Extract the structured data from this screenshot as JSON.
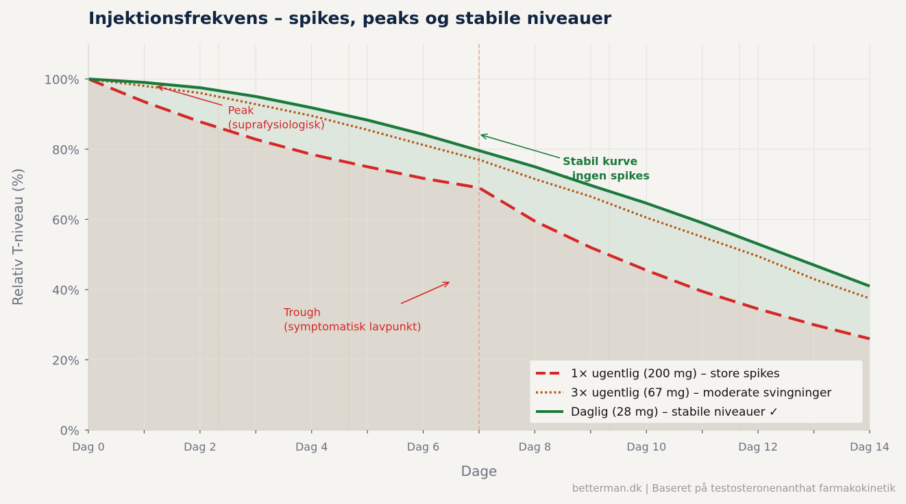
{
  "chart_data": {
    "type": "line",
    "title": "Injektionsfrekvens – spikes, peaks og stabile niveauer",
    "xlabel": "Dage",
    "ylabel": "Relativ T-niveau (%)",
    "xlim": [
      0,
      14
    ],
    "ylim": [
      0,
      110
    ],
    "x_ticks": [
      {
        "value": 0,
        "label": "Dag 0"
      },
      {
        "value": 2,
        "label": "Dag 2"
      },
      {
        "value": 4,
        "label": "Dag 4"
      },
      {
        "value": 6,
        "label": "Dag 6"
      },
      {
        "value": 8,
        "label": "Dag 8"
      },
      {
        "value": 10,
        "label": "Dag 10"
      },
      {
        "value": 12,
        "label": "Dag 12"
      },
      {
        "value": 14,
        "label": "Dag 14"
      }
    ],
    "y_ticks": [
      {
        "value": 0,
        "label": "0%"
      },
      {
        "value": 20,
        "label": "20%"
      },
      {
        "value": 40,
        "label": "40%"
      },
      {
        "value": 60,
        "label": "60%"
      },
      {
        "value": 80,
        "label": "80%"
      },
      {
        "value": 100,
        "label": "100%"
      }
    ],
    "grid": true,
    "legend_position": "bottom-right",
    "series": [
      {
        "name": "1× ugentlig (200 mg) – store spikes",
        "color": "#d62728",
        "style": "dashed",
        "x": [
          0,
          1,
          2,
          3,
          4,
          5,
          6,
          7,
          8,
          9,
          10,
          11,
          12,
          13,
          14
        ],
        "values": [
          100,
          93.5,
          87.8,
          82.8,
          78.5,
          75,
          71.7,
          69,
          59.5,
          52,
          45.5,
          39.5,
          34.5,
          30,
          26
        ]
      },
      {
        "name": "3× ugentlig (67 mg) – moderate svingninger",
        "color": "#b5540f",
        "style": "dotted",
        "x": [
          0,
          1,
          2,
          3,
          4,
          5,
          6,
          7,
          8,
          9,
          10,
          11,
          12,
          13,
          14
        ],
        "values": [
          100,
          98,
          96,
          92.8,
          89.5,
          85.5,
          81.2,
          77,
          71.5,
          66.5,
          60.5,
          55,
          49.5,
          43,
          37.5
        ]
      },
      {
        "name": "Daglig (28 mg) – stabile niveauer ✓",
        "color": "#1a7a3c",
        "style": "solid",
        "x": [
          0,
          1,
          2,
          3,
          4,
          5,
          6,
          7,
          8,
          9,
          10,
          11,
          12,
          13,
          14
        ],
        "values": [
          100,
          99,
          97.5,
          95,
          91.8,
          88.3,
          84.2,
          79.6,
          75,
          69.7,
          64.6,
          59,
          53,
          47,
          41
        ]
      }
    ],
    "vertical_lines": [
      {
        "x": 7,
        "style": "dashed",
        "color": "#d9a080"
      },
      {
        "x": 2.333,
        "style": "dotted",
        "color": "#e0b8a0"
      },
      {
        "x": 4.667,
        "style": "dotted",
        "color": "#e0b8a0"
      },
      {
        "x": 9.333,
        "style": "dotted",
        "color": "#e0b8a0"
      },
      {
        "x": 11.667,
        "style": "dotted",
        "color": "#e0b8a0"
      }
    ],
    "annotations": [
      {
        "name": "peak",
        "lines": [
          "Peak",
          "(suprafysiologisk)"
        ],
        "color": "#d62728",
        "bold": false,
        "text_at": [
          2.5,
          90
        ],
        "arrow_from": [
          2.4,
          92.5
        ],
        "arrow_to": [
          1.25,
          97.8
        ]
      },
      {
        "name": "trough",
        "lines": [
          "Trough",
          "(symptomatisk lavpunkt)"
        ],
        "color": "#d62728",
        "bold": false,
        "text_at": [
          3.5,
          32.5
        ],
        "arrow_from": [
          5.6,
          36
        ],
        "arrow_to": [
          6.45,
          42
        ]
      },
      {
        "name": "stable",
        "lines": [
          "Stabil kurve",
          "– ingen spikes"
        ],
        "color": "#1a7a3c",
        "bold": true,
        "text_at": [
          8.5,
          75.5
        ],
        "arrow_from": [
          8.45,
          77.5
        ],
        "arrow_to": [
          7.05,
          84
        ]
      }
    ],
    "source_note": "betterman.dk | Baseret på testosteronenanthat farmakokinetik"
  }
}
